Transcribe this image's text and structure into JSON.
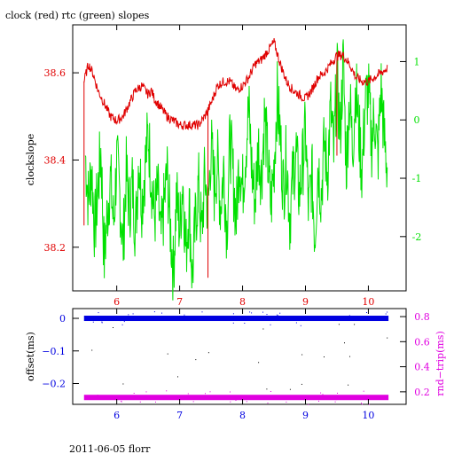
{
  "title": "clock (red) rtc (green) slopes",
  "footer": "2011-06-05 florr",
  "colors": {
    "clock": "#e00000",
    "rtc": "#00e000",
    "offset": "#0000e0",
    "roundtrip": "#e000e0",
    "axis": "#000000"
  },
  "chart_data": [
    {
      "type": "line",
      "ylabel": "clockslope",
      "x_ticks": [
        6,
        7,
        8,
        9,
        10
      ],
      "xlim": [
        5.3,
        10.6
      ],
      "y_left_ticks": [
        "38.2",
        "38.4",
        "38.6"
      ],
      "y_left_tick_values": [
        38.2,
        38.4,
        38.6
      ],
      "ylim_left": [
        38.1,
        38.71
      ],
      "y_right_ticks": [
        "-2",
        "-1",
        "0",
        "1"
      ],
      "y_right_tick_values": [
        -2,
        -1,
        0,
        1
      ],
      "ylim_right": [
        -2.93,
        1.63
      ],
      "series": [
        {
          "axis": "left",
          "color": "#e00000",
          "x": [
            5.48,
            5.55,
            5.62,
            5.7,
            5.8,
            5.9,
            6.0,
            6.1,
            6.2,
            6.3,
            6.4,
            6.5,
            6.55,
            6.6,
            6.7,
            6.8,
            6.9,
            7.0,
            7.1,
            7.2,
            7.3,
            7.4,
            7.5,
            7.6,
            7.7,
            7.8,
            7.9,
            8.0,
            8.1,
            8.2,
            8.3,
            8.4,
            8.5,
            8.6,
            8.7,
            8.8,
            8.9,
            9.0,
            9.1,
            9.2,
            9.3,
            9.4,
            9.5,
            9.6,
            9.7,
            9.8,
            9.9,
            10.0,
            10.1,
            10.2,
            10.3
          ],
          "y": [
            38.58,
            38.62,
            38.6,
            38.56,
            38.53,
            38.5,
            38.49,
            38.5,
            38.53,
            38.56,
            38.57,
            38.55,
            38.56,
            38.54,
            38.52,
            38.5,
            38.49,
            38.48,
            38.48,
            38.48,
            38.48,
            38.5,
            38.53,
            38.57,
            38.58,
            38.58,
            38.56,
            38.57,
            38.59,
            38.62,
            38.63,
            38.65,
            38.67,
            38.62,
            38.58,
            38.56,
            38.55,
            38.54,
            38.56,
            38.59,
            38.6,
            38.62,
            38.64,
            38.64,
            38.62,
            38.59,
            38.58,
            38.58,
            38.59,
            38.6,
            38.61
          ]
        },
        {
          "axis": "right",
          "color": "#00e000",
          "x": [
            5.5,
            5.55,
            5.6,
            5.65,
            5.7,
            5.75,
            5.8,
            5.85,
            5.9,
            5.95,
            6.0,
            6.05,
            6.1,
            6.15,
            6.2,
            6.25,
            6.3,
            6.35,
            6.4,
            6.45,
            6.5,
            6.55,
            6.6,
            6.65,
            6.7,
            6.75,
            6.8,
            6.85,
            6.9,
            6.95,
            7.0,
            7.05,
            7.1,
            7.15,
            7.2,
            7.25,
            7.3,
            7.35,
            7.4,
            7.45,
            7.5,
            7.55,
            7.6,
            7.65,
            7.7,
            7.75,
            7.8,
            7.85,
            7.9,
            7.95,
            8.0,
            8.05,
            8.1,
            8.15,
            8.2,
            8.25,
            8.3,
            8.35,
            8.4,
            8.45,
            8.5,
            8.55,
            8.6,
            8.65,
            8.7,
            8.75,
            8.8,
            8.85,
            8.9,
            8.95,
            9.0,
            9.05,
            9.1,
            9.15,
            9.2,
            9.25,
            9.3,
            9.35,
            9.4,
            9.45,
            9.5,
            9.55,
            9.6,
            9.65,
            9.7,
            9.75,
            9.8,
            9.85,
            9.9,
            9.95,
            10.0,
            10.05,
            10.1,
            10.15,
            10.2,
            10.25,
            10.3
          ],
          "y": [
            -0.6,
            -1.4,
            -0.8,
            -1.9,
            -1.2,
            -0.5,
            -2.4,
            -1.6,
            -1.0,
            -1.8,
            -0.7,
            -1.3,
            -2.2,
            -0.9,
            -1.5,
            -1.1,
            -1.9,
            -0.6,
            -1.4,
            -0.8,
            -0.2,
            -1.0,
            -1.7,
            -1.2,
            -2.1,
            -1.5,
            -0.9,
            -1.8,
            -2.6,
            -1.3,
            -1.9,
            -1.0,
            -2.3,
            -1.4,
            -2.7,
            -1.8,
            -1.1,
            -2.0,
            -0.9,
            -1.6,
            -0.4,
            -1.2,
            -0.7,
            -1.5,
            -0.8,
            -1.9,
            -0.3,
            -1.0,
            -1.7,
            -0.6,
            -1.2,
            -0.5,
            0.2,
            -0.9,
            -1.4,
            -0.4,
            -1.0,
            0.1,
            -0.7,
            -1.5,
            -0.8,
            0.4,
            -0.3,
            -1.2,
            -0.6,
            -1.7,
            -1.0,
            -0.5,
            -1.3,
            -0.8,
            -0.2,
            -1.6,
            -0.9,
            -2.0,
            -0.7,
            -1.3,
            -0.4,
            -0.9,
            0.2,
            -0.6,
            0.8,
            -0.3,
            1.0,
            -0.8,
            0.4,
            -0.5,
            0.6,
            -0.2,
            -0.9,
            0.3,
            0.5,
            -0.4,
            0.1,
            -0.7,
            0.6,
            -0.3,
            -0.8
          ]
        }
      ]
    },
    {
      "type": "scatter",
      "ylabel_left": "offset(ms)",
      "ylabel_right": "rnd−trip(ms)",
      "x_ticks": [
        6,
        7,
        8,
        9,
        10
      ],
      "xlim": [
        5.3,
        10.6
      ],
      "y_left_ticks": [
        "0",
        "−0.1",
        "−0.2"
      ],
      "y_left_tick_values": [
        0,
        -0.1,
        -0.2
      ],
      "ylim_left": [
        -0.264,
        0.03
      ],
      "y_right_ticks": [
        "0.8",
        "0.6",
        "0.4",
        "0.2"
      ],
      "y_right_tick_values": [
        0.8,
        0.6,
        0.4,
        0.2
      ],
      "ylim_right": [
        0.1,
        0.864
      ],
      "series": [
        {
          "axis": "left",
          "color": "#0000e0",
          "x_range": [
            5.48,
            10.32
          ],
          "y": 0.0
        },
        {
          "axis": "right",
          "color": "#e000e0",
          "x_range": [
            5.48,
            10.32
          ],
          "y": 0.155
        }
      ]
    }
  ]
}
